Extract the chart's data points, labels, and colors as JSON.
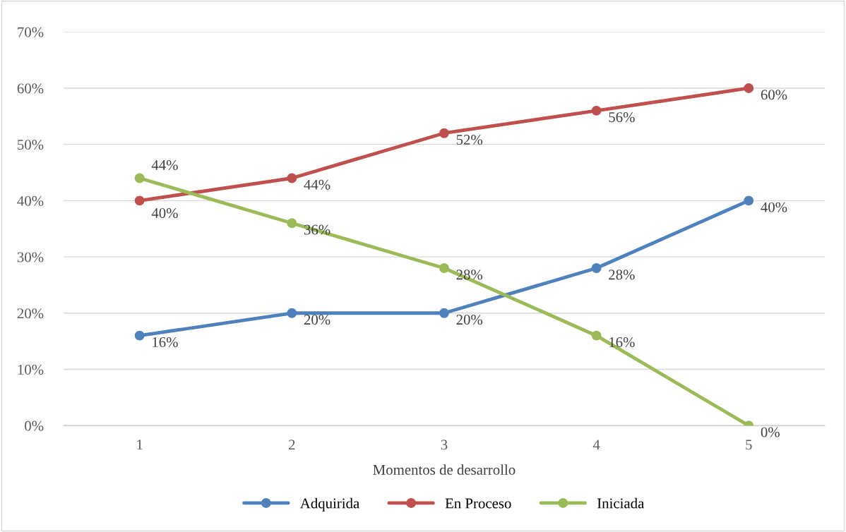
{
  "chart_data": {
    "type": "line",
    "xlabel": "Momentos de desarrollo",
    "categories": [
      "1",
      "2",
      "3",
      "4",
      "5"
    ],
    "series": [
      {
        "name": "Adquirida",
        "color": "#4f81bd",
        "values": [
          16,
          20,
          20,
          28,
          40
        ],
        "value_labels": [
          "16%",
          "20%",
          "20%",
          "28%",
          "40%"
        ]
      },
      {
        "name": "En Proceso",
        "color": "#c0504d",
        "values": [
          40,
          44,
          52,
          56,
          60
        ],
        "value_labels": [
          "40%",
          "44%",
          "52%",
          "56%",
          "60%"
        ]
      },
      {
        "name": "Iniciada",
        "color": "#9bbb59",
        "values": [
          44,
          36,
          28,
          16,
          0
        ],
        "value_labels": [
          "44%",
          "36%",
          "28%",
          "16%",
          "0%"
        ]
      }
    ],
    "ylim": [
      0,
      70
    ],
    "yticks": [
      {
        "value": 0,
        "label": "0%"
      },
      {
        "value": 10,
        "label": "10%"
      },
      {
        "value": 20,
        "label": "20%"
      },
      {
        "value": 30,
        "label": "30%"
      },
      {
        "value": 40,
        "label": "40%"
      },
      {
        "value": 50,
        "label": "50%"
      },
      {
        "value": 60,
        "label": "60%"
      },
      {
        "value": 70,
        "label": "70%"
      }
    ],
    "grid": "y",
    "legend": "bottom",
    "marker": "circle",
    "line_style": "solid"
  }
}
